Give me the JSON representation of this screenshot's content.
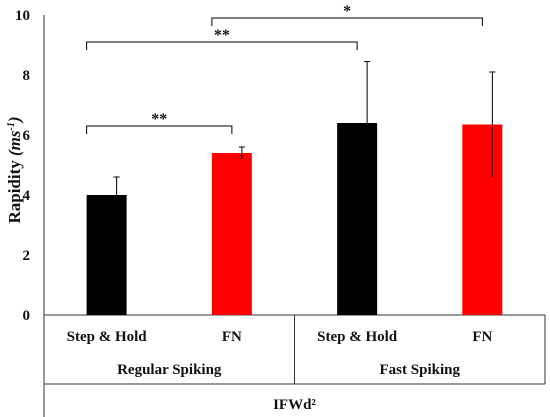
{
  "chart_data": {
    "type": "bar",
    "ylabel": {
      "main": "Rapidity ",
      "unit": "(ms",
      "sup": "-1",
      "close": ")"
    },
    "ylim": [
      0,
      10
    ],
    "yticks": [
      0,
      2,
      4,
      6,
      8,
      10
    ],
    "categories": [
      "Step & Hold",
      "FN",
      "Step & Hold",
      "FN"
    ],
    "values": [
      4.0,
      5.4,
      6.4,
      6.35
    ],
    "errors": [
      0.6,
      0.2,
      2.05,
      1.75
    ],
    "colors": [
      "#000000",
      "#ff0000",
      "#000000",
      "#ff0000"
    ],
    "groups": [
      {
        "label": "Regular Spiking",
        "members": [
          0,
          1
        ]
      },
      {
        "label": "Fast Spiking",
        "members": [
          2,
          3
        ]
      }
    ],
    "outer_label": "IFWd²",
    "significance": [
      {
        "from": 0,
        "to": 1,
        "height": 6.3,
        "label": "**"
      },
      {
        "from": 0,
        "to": 2,
        "height": 9.1,
        "label": "**"
      },
      {
        "from": 1,
        "to": 3,
        "height": 9.9,
        "label": "*"
      }
    ]
  }
}
